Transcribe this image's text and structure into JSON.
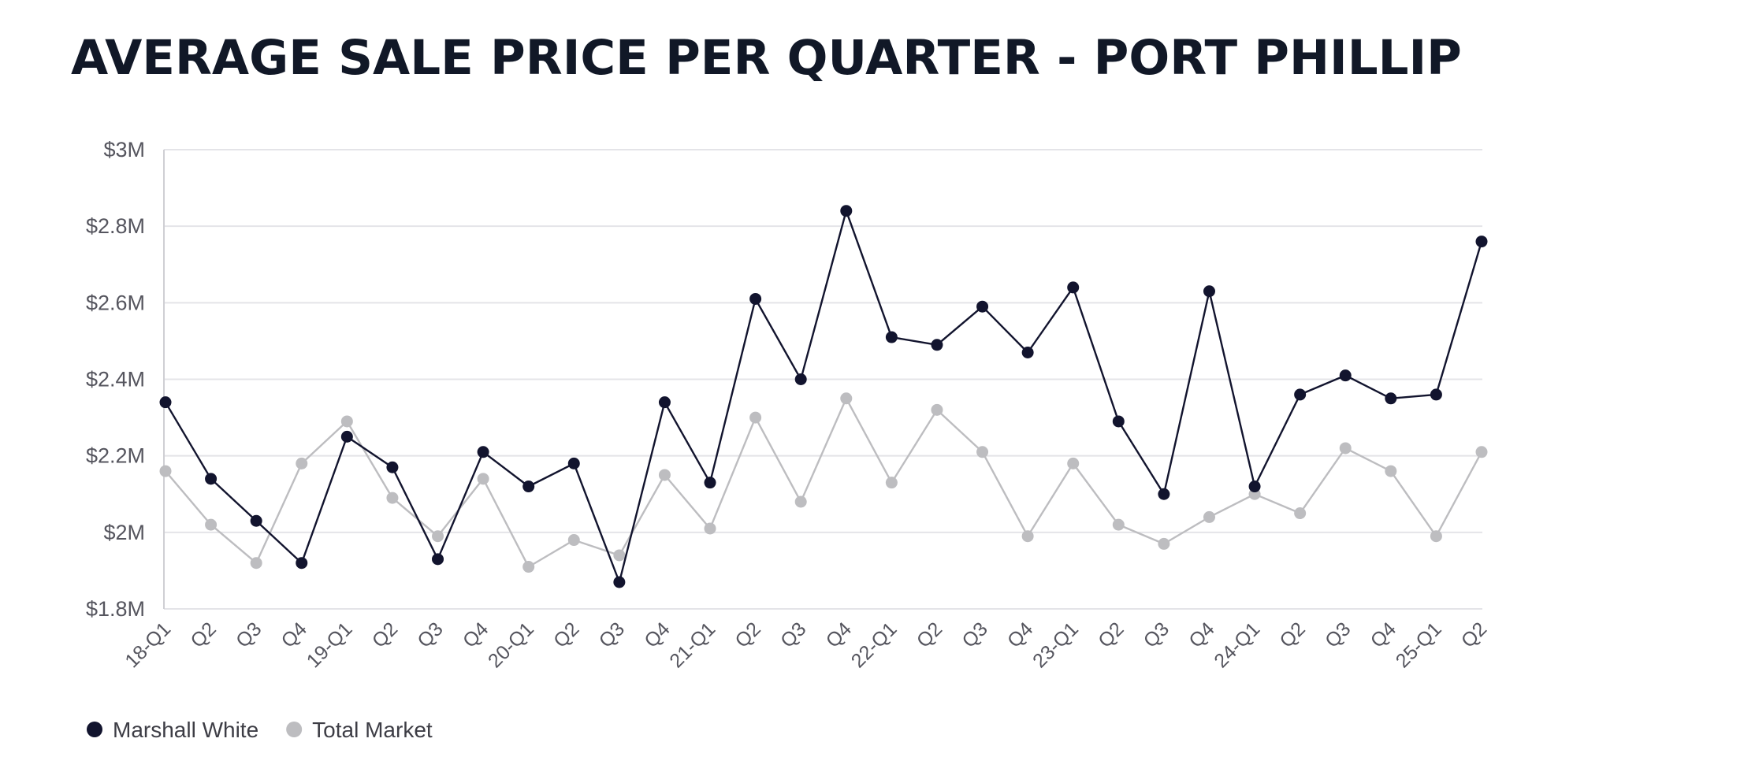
{
  "chart_data": {
    "type": "line",
    "title": "AVERAGE SALE PRICE PER QUARTER - PORT PHILLIP",
    "xlabel": "",
    "ylabel": "",
    "categories": [
      "18-Q1",
      "Q2",
      "Q3",
      "Q4",
      "19-Q1",
      "Q2",
      "Q3",
      "Q4",
      "20-Q1",
      "Q2",
      "Q3",
      "Q4",
      "21-Q1",
      "Q2",
      "Q3",
      "Q4",
      "22-Q1",
      "Q2",
      "Q3",
      "Q4",
      "23-Q1",
      "Q2",
      "Q3",
      "Q4",
      "24-Q1",
      "Q2",
      "Q3",
      "Q4",
      "25-Q1",
      "Q2"
    ],
    "ylim": [
      1.8,
      3.0
    ],
    "yticks": [
      {
        "value": 1.8,
        "label": "$1.8M"
      },
      {
        "value": 2.0,
        "label": "$2M"
      },
      {
        "value": 2.2,
        "label": "$2.2M"
      },
      {
        "value": 2.4,
        "label": "$2.4M"
      },
      {
        "value": 2.6,
        "label": "$2.6M"
      },
      {
        "value": 2.8,
        "label": "$2.8M"
      },
      {
        "value": 3.0,
        "label": "$3M"
      }
    ],
    "grid": true,
    "legend_position": "bottom-left",
    "series": [
      {
        "name": "Marshall White",
        "color": "#12142e",
        "values": [
          2.34,
          2.14,
          2.03,
          1.92,
          2.25,
          2.17,
          1.93,
          2.21,
          2.12,
          2.18,
          1.87,
          2.34,
          2.13,
          2.61,
          2.4,
          2.84,
          2.51,
          2.49,
          2.59,
          2.47,
          2.64,
          2.29,
          2.1,
          2.63,
          2.12,
          2.36,
          2.41,
          2.35,
          2.36,
          2.76
        ]
      },
      {
        "name": "Total Market",
        "color": "#bdbdc0",
        "values": [
          2.16,
          2.02,
          1.92,
          2.18,
          2.29,
          2.09,
          1.99,
          2.14,
          1.91,
          1.98,
          1.94,
          2.15,
          2.01,
          2.3,
          2.08,
          2.35,
          2.13,
          2.32,
          2.21,
          1.99,
          2.18,
          2.02,
          1.97,
          2.04,
          2.1,
          2.05,
          2.22,
          2.16,
          1.99,
          2.21
        ]
      }
    ]
  }
}
